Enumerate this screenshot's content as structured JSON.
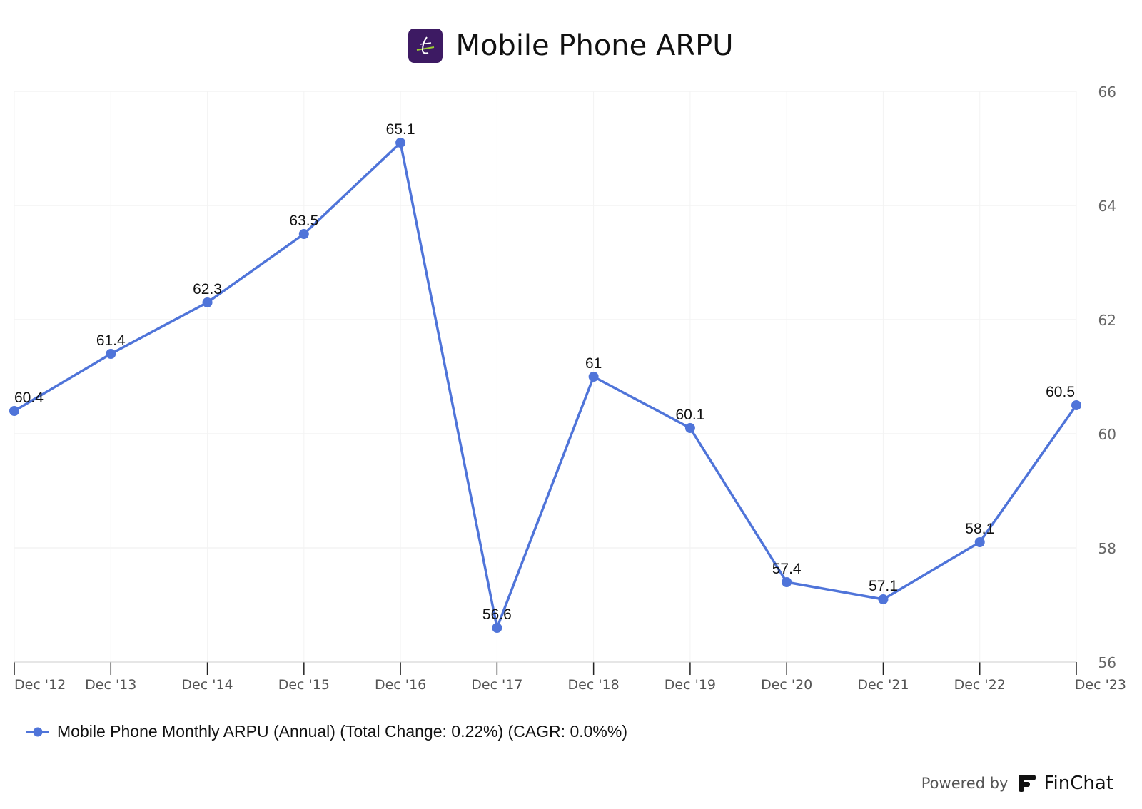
{
  "header": {
    "title": "Mobile Phone ARPU",
    "logo_icon": "company-logo-icon"
  },
  "chart_data": {
    "type": "line",
    "title": "Mobile Phone ARPU",
    "categories": [
      "Dec '12",
      "Dec '13",
      "Dec '14",
      "Dec '15",
      "Dec '16",
      "Dec '17",
      "Dec '18",
      "Dec '19",
      "Dec '20",
      "Dec '21",
      "Dec '22",
      "Dec '23"
    ],
    "series": [
      {
        "name": "Mobile Phone Monthly ARPU (Annual) (Total Change: 0.22%) (CAGR: 0.0%%)",
        "values": [
          60.4,
          61.4,
          62.3,
          63.5,
          65.1,
          56.6,
          61,
          60.1,
          57.4,
          57.1,
          58.1,
          60.5
        ],
        "color": "#4f74d9"
      }
    ],
    "ylim": [
      56,
      66
    ],
    "yticks": [
      "56",
      "58",
      "60",
      "62",
      "64",
      "66"
    ],
    "y_axis_side": "right",
    "grid": true,
    "legend_position": "bottom-left",
    "data_labels": true
  },
  "legend": {
    "label": "Mobile Phone Monthly ARPU (Annual) (Total Change: 0.22%) (CAGR: 0.0%%)"
  },
  "footer": {
    "powered_by": "Powered by",
    "brand": "FinChat",
    "brand_icon": "finchat-logo-icon"
  }
}
